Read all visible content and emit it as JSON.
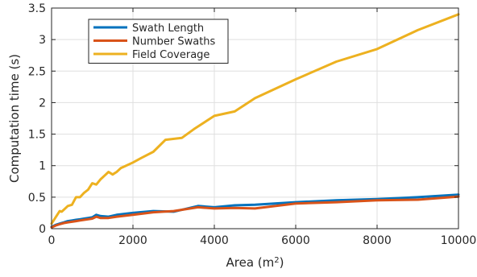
{
  "chart_data": {
    "type": "line",
    "title": "",
    "xlabel": "Area (m",
    "xlabel_sup": "2",
    "xlabel_close": ")",
    "ylabel": "Computation time (s)",
    "xlim": [
      0,
      10000
    ],
    "ylim": [
      0,
      3.5
    ],
    "x_ticks": [
      0,
      2000,
      4000,
      6000,
      8000,
      10000
    ],
    "y_ticks": [
      0,
      0.5,
      1,
      1.5,
      2,
      2.5,
      3,
      3.5
    ],
    "x_tick_labels": [
      "0",
      "2000",
      "4000",
      "6000",
      "8000",
      "10000"
    ],
    "y_tick_labels": [
      "0",
      "0.5",
      "1",
      "1.5",
      "2",
      "2.5",
      "3",
      "3.5"
    ],
    "grid": true,
    "legend_position": "top-left",
    "series": [
      {
        "name": "Swath Length",
        "color": "#0072BD",
        "x": [
          0,
          100,
          200,
          300,
          400,
          500,
          600,
          700,
          800,
          900,
          1000,
          1100,
          1200,
          1400,
          1600,
          2000,
          2500,
          3000,
          3600,
          4000,
          4500,
          5000,
          6000,
          7000,
          8000,
          9000,
          10000
        ],
        "y": [
          0.03,
          0.06,
          0.08,
          0.1,
          0.12,
          0.13,
          0.14,
          0.15,
          0.16,
          0.17,
          0.18,
          0.22,
          0.2,
          0.19,
          0.22,
          0.25,
          0.28,
          0.27,
          0.36,
          0.34,
          0.37,
          0.38,
          0.42,
          0.45,
          0.47,
          0.5,
          0.54
        ]
      },
      {
        "name": "Number Swaths",
        "color": "#D95319",
        "x": [
          0,
          100,
          200,
          300,
          400,
          500,
          600,
          700,
          800,
          900,
          1000,
          1100,
          1200,
          1400,
          1600,
          2000,
          2500,
          3000,
          3600,
          4000,
          4500,
          5000,
          6000,
          7000,
          8000,
          9000,
          10000
        ],
        "y": [
          0.02,
          0.05,
          0.07,
          0.09,
          0.1,
          0.11,
          0.12,
          0.13,
          0.14,
          0.15,
          0.16,
          0.19,
          0.17,
          0.17,
          0.19,
          0.22,
          0.26,
          0.28,
          0.34,
          0.32,
          0.33,
          0.32,
          0.4,
          0.42,
          0.45,
          0.46,
          0.51
        ]
      },
      {
        "name": "Field Coverage",
        "color": "#EDB120",
        "x": [
          0,
          100,
          200,
          250,
          300,
          400,
          500,
          600,
          700,
          800,
          900,
          1000,
          1100,
          1200,
          1300,
          1400,
          1500,
          1600,
          1700,
          1800,
          2000,
          2200,
          2500,
          2800,
          3200,
          3500,
          4000,
          4500,
          5000,
          6000,
          7000,
          8000,
          9000,
          10000
        ],
        "y": [
          0.08,
          0.18,
          0.28,
          0.27,
          0.3,
          0.36,
          0.38,
          0.5,
          0.5,
          0.57,
          0.62,
          0.72,
          0.7,
          0.78,
          0.84,
          0.9,
          0.86,
          0.9,
          0.96,
          0.99,
          1.05,
          1.12,
          1.22,
          1.41,
          1.44,
          1.58,
          1.79,
          1.86,
          2.07,
          2.37,
          2.65,
          2.85,
          3.15,
          3.4
        ]
      }
    ]
  }
}
